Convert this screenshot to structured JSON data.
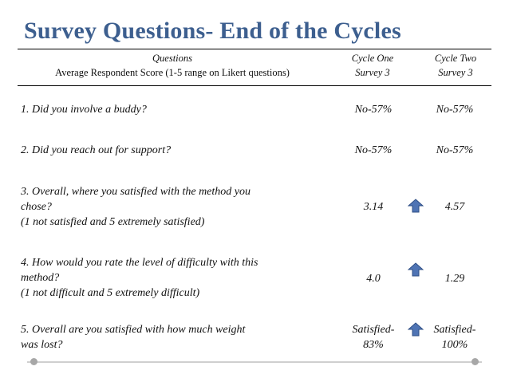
{
  "title": "Survey Questions- End of the Cycles",
  "header": {
    "questions_line1": "Questions",
    "questions_line2": "Average Respondent Score (1-5 range on Likert questions)",
    "col1_line1": "Cycle One",
    "col1_line2": "Survey 3",
    "col2_line1": "Cycle Two",
    "col2_line2": "Survey 3"
  },
  "rows": [
    {
      "question": [
        "1. Did you involve a buddy?"
      ],
      "cycle_one": [
        "No-57%"
      ],
      "cycle_two": [
        "No-57%"
      ],
      "arrow": false
    },
    {
      "question": [
        "2. Did you reach out for support?"
      ],
      "cycle_one": [
        "No-57%"
      ],
      "cycle_two": [
        "No-57%"
      ],
      "arrow": false
    },
    {
      "question": [
        "3. Overall, where you satisfied with the method you",
        "chose?",
        "(1 not satisfied and 5 extremely satisfied)"
      ],
      "cycle_one": [
        "3.14"
      ],
      "cycle_two": [
        "4.57"
      ],
      "arrow": true,
      "arrow_icon": "up-arrow-icon"
    },
    {
      "question": [
        "4. How would you rate the level of difficulty with this",
        "method?",
        "(1 not difficult and 5 extremely difficult)"
      ],
      "cycle_one": [
        "4.0"
      ],
      "cycle_two": [
        "1.29"
      ],
      "arrow": true,
      "arrow_icon": "up-arrow-icon"
    },
    {
      "question": [
        "5. Overall are you satisfied with how much weight",
        "was lost?"
      ],
      "cycle_one": [
        "Satisfied-",
        "83%"
      ],
      "cycle_two": [
        "Satisfied-",
        "100%"
      ],
      "arrow": true,
      "arrow_icon": "up-arrow-icon"
    }
  ],
  "colors": {
    "title": "#3d5f8f",
    "arrow_fill": "#4f74b4",
    "arrow_stroke": "#2f4f86"
  }
}
